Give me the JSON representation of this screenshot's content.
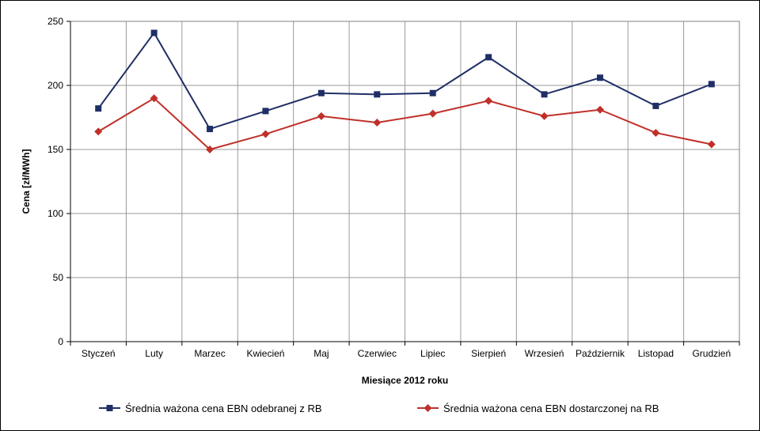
{
  "chart_data": {
    "type": "line",
    "title": "",
    "xlabel": "Miesiące 2012 roku",
    "ylabel": "Cena [zł/MWh]",
    "categories": [
      "Styczeń",
      "Luty",
      "Marzec",
      "Kwiecień",
      "Maj",
      "Czerwiec",
      "Lipiec",
      "Sierpień",
      "Wrzesień",
      "Październik",
      "Listopad",
      "Grudzień"
    ],
    "ylim": [
      0,
      250
    ],
    "yticks": [
      "0",
      "50",
      "100",
      "150",
      "200",
      "250"
    ],
    "grid": true,
    "legend_position": "bottom",
    "series": [
      {
        "name": "Średnia ważona cena EBN odebranej z RB",
        "color": "#1f2f66",
        "marker": "square",
        "values": [
          182,
          241,
          166,
          180,
          194,
          193,
          194,
          222,
          193,
          206,
          184,
          201
        ]
      },
      {
        "name": "Średnia ważona cena EBN dostarczonej na RB",
        "color": "#c0302a",
        "marker": "diamond",
        "values": [
          164,
          190,
          150,
          162,
          176,
          171,
          178,
          188,
          176,
          181,
          163,
          154
        ]
      }
    ]
  }
}
